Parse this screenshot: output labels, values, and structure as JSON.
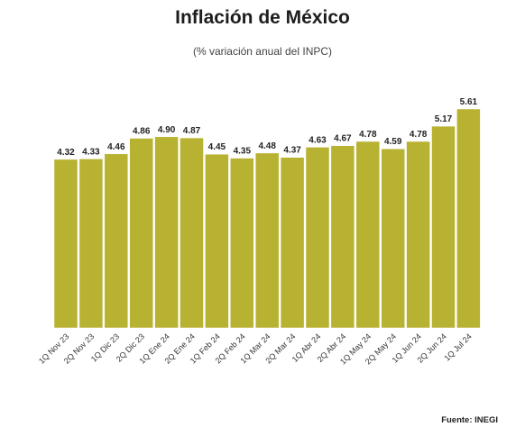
{
  "header": {
    "title": "Inflación de México",
    "subtitle": "(% variación anual del INPC)"
  },
  "footer": {
    "source": "Fuente: INEGI"
  },
  "colors": {
    "bar": "#b8b232",
    "bar_border": "#ffffff",
    "label": "#222222",
    "tick_label": "#333333"
  },
  "chart_data": {
    "type": "bar",
    "title": "Inflación de México",
    "subtitle": "(% variación anual del INPC)",
    "xlabel": "",
    "ylabel": "",
    "grid": false,
    "legend": "none",
    "ylim": [
      0,
      5.9
    ],
    "categories": [
      "1Q Nov 23",
      "2Q Nov 23",
      "1Q Dic 23",
      "2Q Dic 23",
      "1Q Ene 24",
      "2Q Ene 24",
      "1Q Feb 24",
      "2Q Feb 24",
      "1Q Mar 24",
      "2Q Mar 24",
      "1Q Abr 24",
      "2Q Abr 24",
      "1Q May 24",
      "2Q May 24",
      "1Q Jun 24",
      "2Q Jun 24",
      "1Q Jul 24"
    ],
    "values": [
      4.32,
      4.33,
      4.46,
      4.86,
      4.9,
      4.87,
      4.45,
      4.35,
      4.48,
      4.37,
      4.63,
      4.67,
      4.78,
      4.59,
      4.78,
      5.17,
      5.61
    ],
    "value_labels": [
      "4.32",
      "4.33",
      "4.46",
      "4.86",
      "4.90",
      "4.87",
      "4.45",
      "4.35",
      "4.48",
      "4.37",
      "4.63",
      "4.67",
      "4.78",
      "4.59",
      "4.78",
      "5.17",
      "5.61"
    ]
  }
}
